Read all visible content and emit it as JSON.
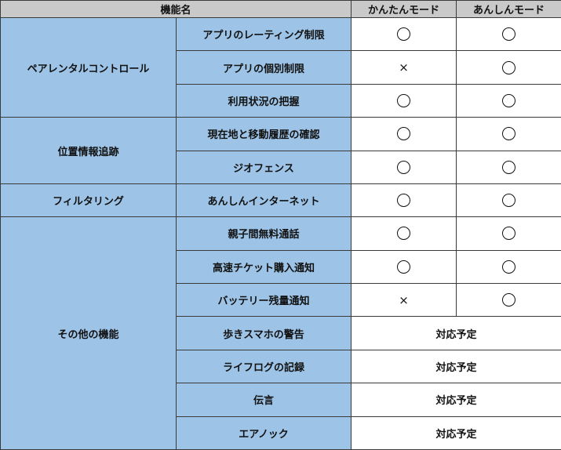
{
  "header": {
    "feature_name": "機能名",
    "easy_mode": "かんたんモード",
    "safe_mode": "あんしんモード"
  },
  "symbols": {
    "yes": "○",
    "no": "×"
  },
  "colors": {
    "header_bg": "#c9c9c9",
    "feature_bg": "#9dc3e6",
    "border": "#3a3a3a"
  },
  "groups": [
    {
      "name": "ペアレンタルコントロール",
      "rows": [
        {
          "feature": "アプリのレーティング制限",
          "easy": "yes",
          "safe": "yes"
        },
        {
          "feature": "アプリの個別制限",
          "easy": "no",
          "safe": "yes"
        },
        {
          "feature": "利用状況の把握",
          "easy": "yes",
          "safe": "yes"
        }
      ]
    },
    {
      "name": "位置情報追跡",
      "rows": [
        {
          "feature": "現在地と移動履歴の確認",
          "easy": "yes",
          "safe": "yes"
        },
        {
          "feature": "ジオフェンス",
          "easy": "yes",
          "safe": "yes"
        }
      ]
    },
    {
      "name": "フィルタリング",
      "rows": [
        {
          "feature": "あんしんインターネット",
          "easy": "yes",
          "safe": "yes"
        }
      ]
    },
    {
      "name": "その他の機能",
      "rows": [
        {
          "feature": "親子間無料通話",
          "easy": "yes",
          "safe": "yes"
        },
        {
          "feature": "高速チケット購入通知",
          "easy": "yes",
          "safe": "yes"
        },
        {
          "feature": "バッテリー残量通知",
          "easy": "no",
          "safe": "yes"
        },
        {
          "feature": "歩きスマホの警告",
          "planned": "対応予定"
        },
        {
          "feature": "ライフログの記録",
          "planned": "対応予定"
        },
        {
          "feature": "伝言",
          "planned": "対応予定"
        },
        {
          "feature": "エアノック",
          "planned": "対応予定"
        }
      ]
    }
  ]
}
